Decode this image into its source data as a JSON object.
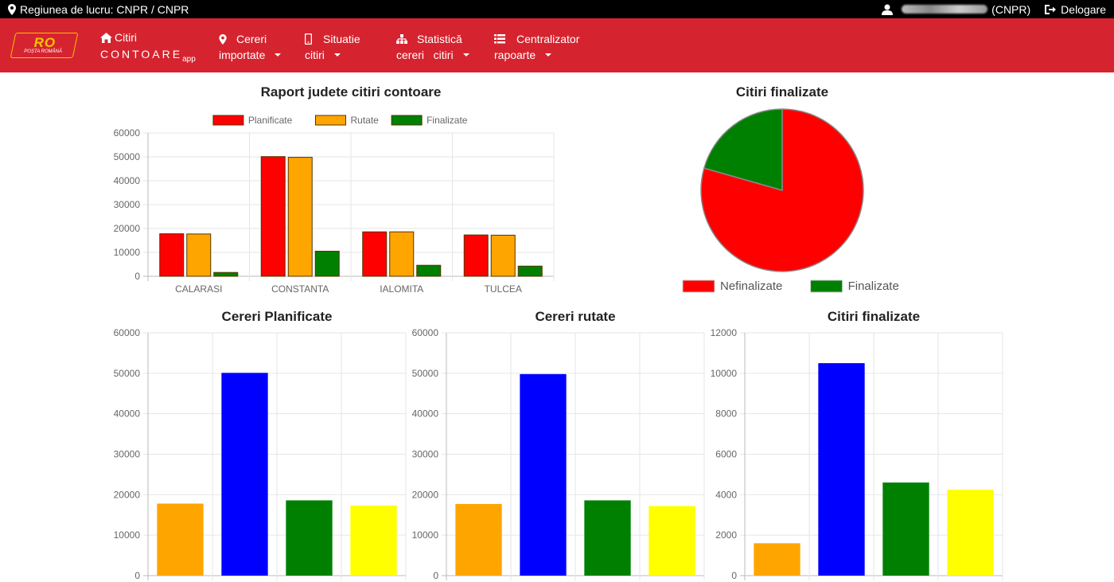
{
  "topbar": {
    "region_label": "Regiunea de lucru: CNPR / CNPR",
    "user_suffix": "(CNPR)",
    "logout_label": "Delogare"
  },
  "navbar": {
    "logo_text": "RO",
    "logo_sub": "POȘTA ROMÂNĂ",
    "home_line1": "Citiri",
    "home_line2": "CONTOARE",
    "home_sub": "app",
    "items": [
      {
        "line1": "Cereri",
        "line2": "importate",
        "icon": "map-marker-icon"
      },
      {
        "line1": "Situatie",
        "line2": "citiri",
        "icon": "mobile-icon"
      },
      {
        "line1": "Statistică",
        "line2": "cereri   citiri",
        "icon": "sitemap-icon"
      },
      {
        "line1": "Centralizator",
        "line2": "rapoarte",
        "icon": "list-icon"
      }
    ]
  },
  "colors": {
    "topbar": "#000000",
    "navbar": "#d5242f",
    "red": "#ff0000",
    "orange": "#ffa500",
    "green": "#008000",
    "blue": "#0000ff",
    "yellow": "#ffff00"
  },
  "chart_data": [
    {
      "type": "bar",
      "title": "Raport judete citiri contoare",
      "categories": [
        "CALARASI",
        "CONSTANTA",
        "IALOMITA",
        "TULCEA"
      ],
      "series": [
        {
          "name": "Planificate",
          "color": "#ff0000",
          "values": [
            17800,
            50100,
            18600,
            17300
          ]
        },
        {
          "name": "Rutate",
          "color": "#ffa500",
          "values": [
            17700,
            49800,
            18600,
            17200
          ]
        },
        {
          "name": "Finalizate",
          "color": "#008000",
          "values": [
            1600,
            10500,
            4600,
            4250
          ]
        }
      ],
      "ylim": [
        0,
        60000
      ],
      "yticks": [
        0,
        10000,
        20000,
        30000,
        40000,
        50000,
        60000
      ],
      "legend": "top",
      "grid": true
    },
    {
      "type": "pie",
      "title": "Citiri finalizate",
      "labels": [
        "Nefinalizate",
        "Finalizate"
      ],
      "values": [
        79.4,
        20.6
      ],
      "colors": [
        "#ff0000",
        "#008000"
      ],
      "legend": "bottom"
    },
    {
      "type": "bar",
      "title": "Cereri Planificate",
      "values": [
        17800,
        50100,
        18600,
        17300
      ],
      "colors": [
        "#ffa500",
        "#0000ff",
        "#008000",
        "#ffff00"
      ],
      "ylim": [
        0,
        60000
      ],
      "yticks": [
        0,
        10000,
        20000,
        30000,
        40000,
        50000,
        60000
      ],
      "grid": true
    },
    {
      "type": "bar",
      "title": "Cereri rutate",
      "values": [
        17700,
        49800,
        18600,
        17200
      ],
      "colors": [
        "#ffa500",
        "#0000ff",
        "#008000",
        "#ffff00"
      ],
      "ylim": [
        0,
        60000
      ],
      "yticks": [
        0,
        10000,
        20000,
        30000,
        40000,
        50000,
        60000
      ],
      "grid": true
    },
    {
      "type": "bar",
      "title": "Citiri finalizate",
      "values": [
        1600,
        10500,
        4600,
        4250
      ],
      "colors": [
        "#ffa500",
        "#0000ff",
        "#008000",
        "#ffff00"
      ],
      "ylim": [
        0,
        12000
      ],
      "yticks": [
        0,
        2000,
        4000,
        6000,
        8000,
        10000,
        12000
      ],
      "grid": true
    }
  ]
}
